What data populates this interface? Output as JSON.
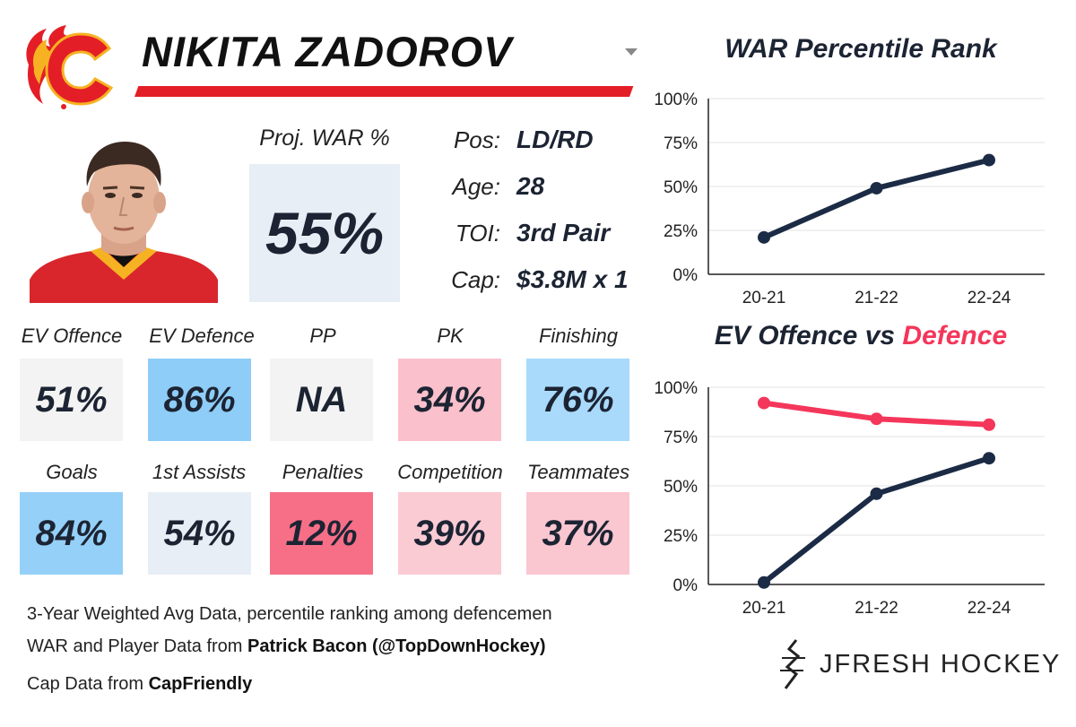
{
  "player": {
    "name": "NIKITA ZADOROV",
    "team_color": "#e41e26",
    "team_accent": "#f6b222",
    "logo_letter": "C"
  },
  "projection": {
    "label": "Proj. WAR %",
    "value": "55%"
  },
  "info": [
    {
      "label": "Pos:",
      "value": "LD/RD"
    },
    {
      "label": "Age:",
      "value": "28"
    },
    {
      "label": "TOI:",
      "value": "3rd Pair"
    },
    {
      "label": "Cap:",
      "value": "$3.8M x 1"
    }
  ],
  "metrics_row1": [
    {
      "label": "EV Offence",
      "value": "51%",
      "color": "#f3f3f3"
    },
    {
      "label": "EV Defence",
      "value": "86%",
      "color": "#8ecdf8"
    },
    {
      "label": "PP",
      "value": "NA",
      "color": "#f3f3f3"
    },
    {
      "label": "PK",
      "value": "34%",
      "color": "#fac0cb"
    },
    {
      "label": "Finishing",
      "value": "76%",
      "color": "#a9dafc"
    }
  ],
  "metrics_row2": [
    {
      "label": "Goals",
      "value": "84%",
      "color": "#95d0f8"
    },
    {
      "label": "1st Assists",
      "value": "54%",
      "color": "#e8eef5"
    },
    {
      "label": "Penalties",
      "value": "12%",
      "color": "#f76f87"
    },
    {
      "label": "Competition",
      "value": "39%",
      "color": "#fbcbd4"
    },
    {
      "label": "Teammates",
      "value": "37%",
      "color": "#fac6d0"
    }
  ],
  "footnotes": {
    "line1": "3-Year Weighted Avg Data, percentile ranking among defencemen",
    "line2_prefix": "WAR and Player Data from ",
    "line2_bold": "Patrick Bacon (@TopDownHockey)",
    "line3_prefix": "Cap Data from ",
    "line3_bold": "CapFriendly"
  },
  "brand": {
    "text": "JFRESH HOCKEY"
  },
  "chart_data": [
    {
      "type": "line",
      "title": "WAR Percentile Rank",
      "categories": [
        "20-21",
        "21-22",
        "22-24"
      ],
      "series": [
        {
          "name": "WAR",
          "values": [
            21,
            49,
            65
          ],
          "color": "#1c2b45"
        }
      ],
      "ylim": [
        0,
        100
      ],
      "yticks": [
        0,
        25,
        50,
        75,
        100
      ],
      "ytick_labels": [
        "0%",
        "25%",
        "50%",
        "75%",
        "100%"
      ],
      "grid": true
    },
    {
      "type": "line",
      "title_parts": [
        "EV Offence vs ",
        "Defence"
      ],
      "title_colors": [
        "#1c2433",
        "#f4365a"
      ],
      "categories": [
        "20-21",
        "21-22",
        "22-24"
      ],
      "series": [
        {
          "name": "EV Defence",
          "values": [
            92,
            84,
            81
          ],
          "color": "#f4365a"
        },
        {
          "name": "EV Offence",
          "values": [
            1,
            46,
            64
          ],
          "color": "#1c2b45"
        }
      ],
      "ylim": [
        0,
        100
      ],
      "yticks": [
        0,
        25,
        50,
        75,
        100
      ],
      "ytick_labels": [
        "0%",
        "25%",
        "50%",
        "75%",
        "100%"
      ],
      "grid": true
    }
  ]
}
